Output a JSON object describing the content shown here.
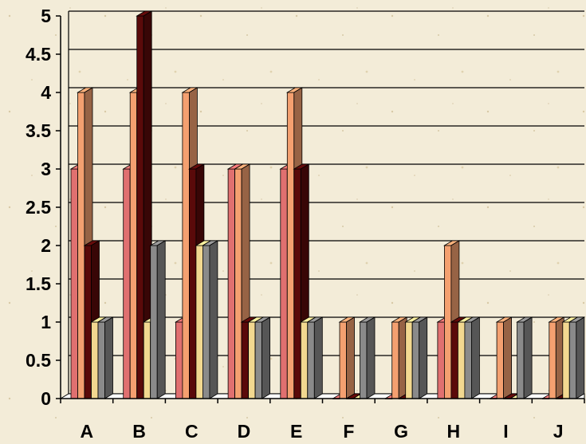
{
  "chart_data": {
    "type": "bar",
    "categories": [
      "A",
      "B",
      "C",
      "D",
      "E",
      "F",
      "G",
      "H",
      "I",
      "J"
    ],
    "series": [
      {
        "color": "#e07070",
        "values": [
          3,
          3,
          1,
          3,
          3,
          0,
          0,
          1,
          0,
          0
        ]
      },
      {
        "color": "#f4a070",
        "values": [
          4,
          4,
          4,
          3,
          4,
          1,
          1,
          2,
          1,
          1
        ]
      },
      {
        "color": "#5a0a0a",
        "values": [
          2,
          5,
          3,
          1,
          3,
          0,
          0,
          1,
          0,
          0
        ]
      },
      {
        "color": "#f2d890",
        "values": [
          1,
          1,
          2,
          1,
          1,
          0,
          1,
          1,
          0,
          1
        ]
      },
      {
        "color": "#8a8a8a",
        "values": [
          1,
          2,
          2,
          1,
          1,
          1,
          1,
          1,
          1,
          1
        ]
      }
    ],
    "ylim": [
      0,
      5
    ],
    "yticks": [
      "0",
      "0.5",
      "1",
      "1.5",
      "2",
      "2.5",
      "3",
      "3.5",
      "4",
      "4.5",
      "5"
    ],
    "grid": true,
    "legend": "none",
    "style": "3d-clustered-bar"
  }
}
